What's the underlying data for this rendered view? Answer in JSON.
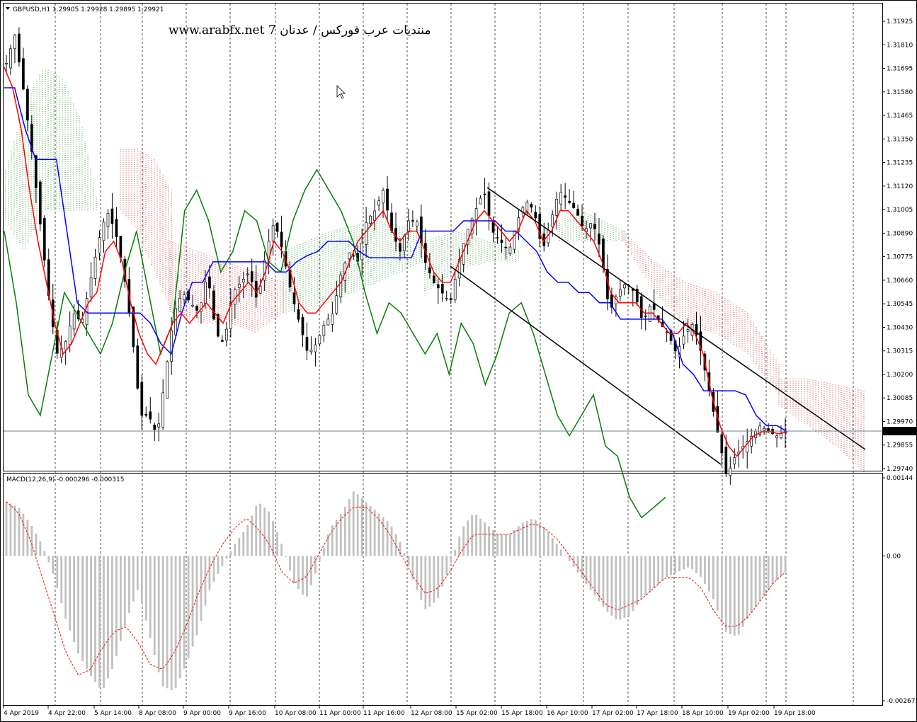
{
  "header": {
    "symbol_line": "GBPUSD,H1  1.29905 1.29928 1.29895 1.29921",
    "watermark": "www.arabfx.net 7 منتديات عرب فوركس / عدنان"
  },
  "price_panel": {
    "current_price": "1.29921",
    "price_ticks": [
      "1.31925",
      "1.31810",
      "1.31695",
      "1.31580",
      "1.31465",
      "1.31350",
      "1.31235",
      "1.31120",
      "1.31005",
      "1.30890",
      "1.30775",
      "1.30660",
      "1.30545",
      "1.30430",
      "1.30315",
      "1.30200",
      "1.30085",
      "1.29970",
      "1.29855",
      "1.29740"
    ]
  },
  "macd_panel": {
    "label": "MACD(12,26,9) -0.000296 -0.000315",
    "ticks": [
      "0.00144",
      "0.00",
      "-0.002673"
    ]
  },
  "time_axis": {
    "labels": [
      "4 Apr 2019",
      "4 Apr 22:00",
      "5 Apr 14:00",
      "8 Apr 08:00",
      "9 Apr 00:00",
      "9 Apr 16:00",
      "10 Apr 08:00",
      "11 Apr 00:00",
      "11 Apr 16:00",
      "12 Apr 08:00",
      "15 Apr 02:00",
      "15 Apr 18:00",
      "16 Apr 10:00",
      "17 Apr 02:00",
      "17 Apr 18:00",
      "18 Apr 10:00",
      "19 Apr 02:00",
      "19 Apr 18:00"
    ]
  },
  "colors": {
    "tenkan": "#ff0000",
    "kijun": "#0000ff",
    "chikou": "#008000",
    "cloud_bull": "#008000",
    "cloud_bear": "#cc0000",
    "macd_hist": "#c0c0c0",
    "macd_signal": "#ff0000",
    "channel": "#000000",
    "grid": "#000000"
  },
  "chart_data": {
    "type": "candlestick",
    "symbol": "GBPUSD",
    "timeframe": "H1",
    "ohlc_last": {
      "open": 1.29905,
      "high": 1.29928,
      "low": 1.29895,
      "close": 1.29921
    },
    "ylim": [
      1.2968,
      1.31985
    ],
    "close_path": [
      1.3172,
      1.3186,
      1.316,
      1.313,
      1.3095,
      1.306,
      1.303,
      1.3035,
      1.305,
      1.3045,
      1.3065,
      1.3085,
      1.31,
      1.309,
      1.307,
      1.304,
      1.3,
      1.3,
      1.299,
      1.302,
      1.305,
      1.306,
      1.3055,
      1.305,
      1.307,
      1.304,
      1.3035,
      1.306,
      1.3065,
      1.307,
      1.3055,
      1.308,
      1.3095,
      1.308,
      1.306,
      1.3045,
      1.303,
      1.3035,
      1.3045,
      1.305,
      1.307,
      1.308,
      1.3075,
      1.3095,
      1.31,
      1.311,
      1.309,
      1.308,
      1.3095,
      1.3095,
      1.3075,
      1.3065,
      1.306,
      1.3055,
      1.3075,
      1.309,
      1.31,
      1.311,
      1.309,
      1.3085,
      1.308,
      1.3095,
      1.3105,
      1.31,
      1.308,
      1.3095,
      1.311,
      1.3105,
      1.31,
      1.309,
      1.3095,
      1.308,
      1.305,
      1.306,
      1.3065,
      1.306,
      1.3045,
      1.3055,
      1.3045,
      1.304,
      1.303,
      1.304,
      1.3045,
      1.303,
      1.301,
      1.299,
      1.297,
      1.298,
      1.2985,
      1.299,
      1.2995,
      1.2992,
      1.299,
      1.2992
    ],
    "tenkan_path": [
      1.317,
      1.316,
      1.314,
      1.311,
      1.3085,
      1.3065,
      1.3045,
      1.303,
      1.3035,
      1.3045,
      1.3055,
      1.306,
      1.308,
      1.3085,
      1.3075,
      1.3055,
      1.304,
      1.303,
      1.3025,
      1.3035,
      1.3045,
      1.305,
      1.3045,
      1.305,
      1.3055,
      1.305,
      1.3045,
      1.3055,
      1.306,
      1.3065,
      1.306,
      1.307,
      1.3085,
      1.308,
      1.307,
      1.3055,
      1.305,
      1.305,
      1.3055,
      1.306,
      1.3065,
      1.3075,
      1.3085,
      1.309,
      1.3095,
      1.31,
      1.309,
      1.3085,
      1.309,
      1.309,
      1.308,
      1.307,
      1.3065,
      1.3065,
      1.3075,
      1.3085,
      1.3095,
      1.31,
      1.3095,
      1.309,
      1.3085,
      1.309,
      1.31,
      1.3095,
      1.3085,
      1.309,
      1.31,
      1.31,
      1.3095,
      1.309,
      1.3085,
      1.3075,
      1.306,
      1.3055,
      1.3055,
      1.3055,
      1.305,
      1.305,
      1.3045,
      1.304,
      1.304,
      1.3045,
      1.304,
      1.303,
      1.301,
      1.2995,
      1.2985,
      1.298,
      1.2985,
      1.299,
      1.2992,
      1.2992,
      1.2991,
      1.2992
    ],
    "kijun_path": [
      1.316,
      1.316,
      1.314,
      1.3125,
      1.3125,
      1.3125,
      1.309,
      1.3055,
      1.305,
      1.305,
      1.305,
      1.305,
      1.305,
      1.305,
      1.3045,
      1.3035,
      1.303,
      1.305,
      1.3065,
      1.3065,
      1.3075,
      1.3075,
      1.3075,
      1.3075,
      1.3075,
      1.3075,
      1.307,
      1.307,
      1.3075,
      1.3078,
      1.308,
      1.3085,
      1.3085,
      1.3085,
      1.308,
      1.3077,
      1.3077,
      1.3077,
      1.3077,
      1.3077,
      1.309,
      1.309,
      1.309,
      1.309,
      1.3095,
      1.3095,
      1.3095,
      1.3095,
      1.309,
      1.309,
      1.3085,
      1.308,
      1.307,
      1.3065,
      1.3065,
      1.306,
      1.306,
      1.3055,
      1.3055,
      1.3047,
      1.3047,
      1.3047,
      1.3047,
      1.3047,
      1.304,
      1.3025,
      1.302,
      1.3012,
      1.3012,
      1.3012,
      1.3012,
      1.301,
      1.3,
      1.2995,
      1.2995,
      1.2992
    ],
    "chikou_path": [
      1.309,
      1.3055,
      1.301,
      1.3,
      1.303,
      1.306,
      1.305,
      1.304,
      1.303,
      1.3045,
      1.307,
      1.309,
      1.306,
      1.303,
      1.3045,
      1.31,
      1.311,
      1.3095,
      1.307,
      1.308,
      1.31,
      1.3095,
      1.3075,
      1.307,
      1.3095,
      1.311,
      1.312,
      1.311,
      1.31,
      1.3085,
      1.306,
      1.304,
      1.3055,
      1.305,
      1.304,
      1.303,
      1.304,
      1.302,
      1.3045,
      1.3035,
      1.3015,
      1.303,
      1.305,
      1.3055,
      1.304,
      1.302,
      1.3,
      1.299,
      1.3,
      1.301,
      1.2985,
      1.298,
      1.296,
      1.295,
      1.2955,
      1.296
    ],
    "macd_hist": [
      0.001,
      0.0009,
      0.0006,
      0.0002,
      -0.0004,
      -0.0012,
      -0.0018,
      -0.0022,
      -0.0025,
      -0.002,
      -0.0012,
      -0.0006,
      -0.0015,
      -0.0024,
      -0.0025,
      -0.002,
      -0.0014,
      -0.0006,
      -0.0002,
      0.0002,
      0.0005,
      0.001,
      0.0008,
      0.0002,
      -0.0005,
      -0.0008,
      -0.0002,
      0.0005,
      0.0008,
      0.0012,
      0.001,
      0.0008,
      0.0006,
      0.0002,
      -0.0005,
      -0.001,
      -0.0008,
      -0.0002,
      0.0005,
      0.0008,
      0.0006,
      0.0004,
      0.0004,
      0.0006,
      0.0007,
      0.0005,
      0.0002,
      -0.0001,
      -0.0004,
      -0.0007,
      -0.001,
      -0.0012,
      -0.0011,
      -0.0008,
      -0.0006,
      -0.0004,
      -0.0003,
      -0.0002,
      -0.0004,
      -0.0008,
      -0.0014,
      -0.0015,
      -0.0011,
      -0.0008,
      -0.0005,
      -0.0003
    ],
    "macd_signal": [
      0.001,
      0.0008,
      0.0003,
      -0.0004,
      -0.0011,
      -0.0018,
      -0.0022,
      -0.0021,
      -0.0017,
      -0.0014,
      -0.0013,
      -0.0016,
      -0.002,
      -0.0021,
      -0.0018,
      -0.0013,
      -0.0007,
      -0.0002,
      0.0002,
      0.0005,
      0.0007,
      0.0005,
      0.0002,
      -0.0003,
      -0.0005,
      -0.0004,
      0.0,
      0.0004,
      0.0007,
      0.0009,
      0.0009,
      0.0007,
      0.0004,
      0.0,
      -0.0004,
      -0.0007,
      -0.0006,
      -0.0003,
      0.0001,
      0.0004,
      0.0004,
      0.0004,
      0.0004,
      0.0005,
      0.0006,
      0.0005,
      0.0003,
      0.0,
      -0.0003,
      -0.0006,
      -0.0009,
      -0.001,
      -0.0009,
      -0.0008,
      -0.0006,
      -0.0004,
      -0.0004,
      -0.0004,
      -0.0006,
      -0.001,
      -0.0013,
      -0.0013,
      -0.0011,
      -0.0008,
      -0.0005,
      -0.0003
    ],
    "macd_ylim": [
      -0.002673,
      0.00144
    ]
  }
}
